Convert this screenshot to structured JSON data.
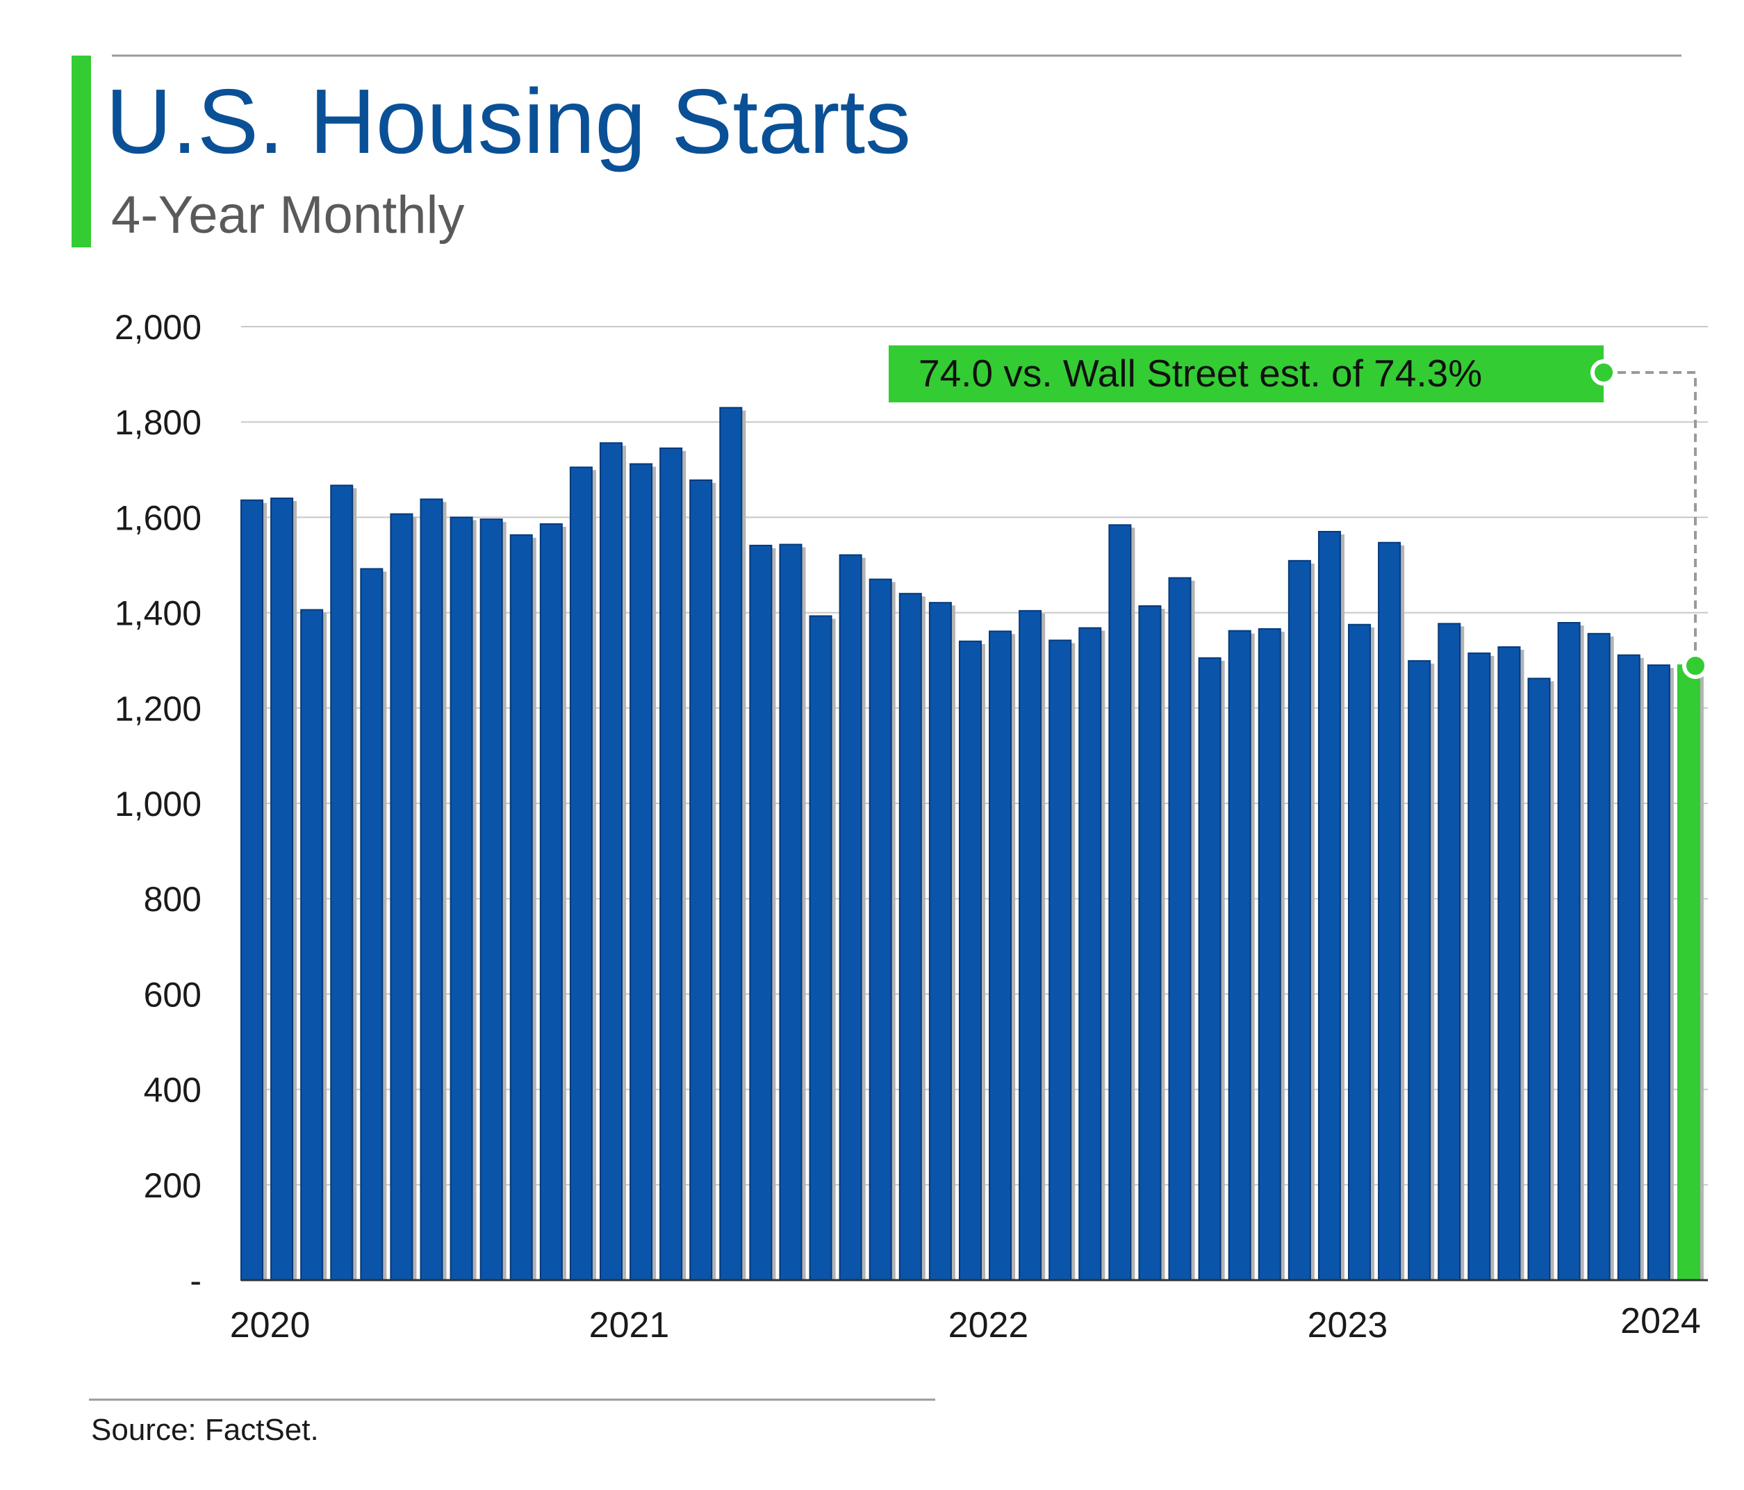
{
  "header": {
    "title": "U.S. Housing Starts",
    "subtitle": "4-Year Monthly"
  },
  "footer": {
    "source": "Source: FactSet."
  },
  "annotation": {
    "text": "74.0 vs. Wall Street est. of 74.3%"
  },
  "colors": {
    "title": "#0a5096",
    "subtitle": "#5a5a5a",
    "accent": "#33cc33",
    "bar": "#0a55aa",
    "bar_shadow": "#b4b4b4",
    "highlight_bar": "#33cc33",
    "grid": "#c8c8c8",
    "axis_text": "#1a1a1a"
  },
  "chart_data": {
    "type": "bar",
    "categories": [
      "2020-01",
      "2020-02",
      "2020-03",
      "2020-04",
      "2020-05",
      "2020-06",
      "2020-07",
      "2020-08",
      "2020-09",
      "2020-10",
      "2020-11",
      "2020-12",
      "2021-01",
      "2021-02",
      "2021-03",
      "2021-04",
      "2021-05",
      "2021-06",
      "2021-07",
      "2021-08",
      "2021-09",
      "2021-10",
      "2021-11",
      "2021-12",
      "2022-01",
      "2022-02",
      "2022-03",
      "2022-04",
      "2022-05",
      "2022-06",
      "2022-07",
      "2022-08",
      "2022-09",
      "2022-10",
      "2022-11",
      "2022-12",
      "2023-01",
      "2023-02",
      "2023-03",
      "2023-04",
      "2023-05",
      "2023-06",
      "2023-07",
      "2023-08",
      "2023-09",
      "2023-10",
      "2023-11",
      "2023-12",
      "2024-01"
    ],
    "values": [
      1636,
      1640,
      1406,
      1667,
      1492,
      1607,
      1638,
      1600,
      1596,
      1563,
      1586,
      1705,
      1756,
      1712,
      1745,
      1678,
      1830,
      1541,
      1543,
      1393,
      1521,
      1470,
      1440,
      1421,
      1340,
      1361,
      1404,
      1342,
      1368,
      1584,
      1414,
      1473,
      1305,
      1362,
      1366,
      1509,
      1570,
      1375,
      1547,
      1299,
      1377,
      1315,
      1328,
      1262,
      1379,
      1356,
      1311,
      1290,
      1290
    ],
    "highlight_index": 48,
    "x_tick_labels": [
      "2020",
      "2021",
      "2022",
      "2023",
      "2024"
    ],
    "y_tick_labels": [
      "-",
      "200",
      "400",
      "600",
      "800",
      "1,000",
      "1,200",
      "1,400",
      "1,600",
      "1,800",
      "2,000"
    ],
    "y_ticks": [
      0,
      200,
      400,
      600,
      800,
      1000,
      1200,
      1400,
      1600,
      1800,
      2000
    ],
    "ylim": [
      0,
      2000
    ],
    "grid": true,
    "title": "U.S. Housing Starts",
    "subtitle": "4-Year Monthly",
    "xlabel": "",
    "ylabel": ""
  }
}
